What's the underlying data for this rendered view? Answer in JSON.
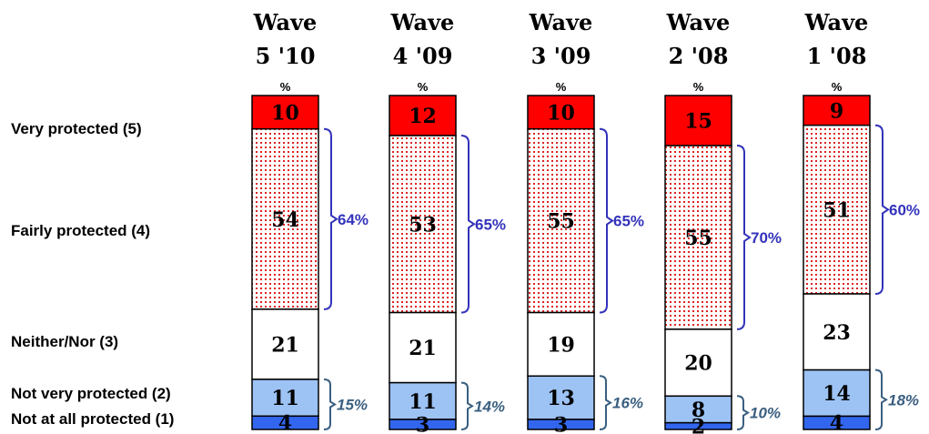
{
  "chart_data": {
    "type": "bar",
    "stacked": true,
    "orientation": "vertical",
    "unit_label": "%",
    "categories": [
      "Wave\n5 '10",
      "Wave\n4 '09",
      "Wave\n3 '09",
      "Wave\n2 '08",
      "Wave\n1 '08"
    ],
    "series": [
      {
        "name": "Very protected (5)",
        "values": [
          10,
          12,
          10,
          15,
          9
        ]
      },
      {
        "name": "Fairly protected (4)",
        "values": [
          54,
          53,
          55,
          55,
          51
        ]
      },
      {
        "name": "Neither/Nor (3)",
        "values": [
          21,
          21,
          19,
          20,
          23
        ]
      },
      {
        "name": "Not very protected (2)",
        "values": [
          11,
          11,
          13,
          8,
          14
        ]
      },
      {
        "name": "Not at all protected (1)",
        "values": [
          4,
          3,
          3,
          2,
          4
        ]
      }
    ],
    "net_protected": [
      "64%",
      "65%",
      "65%",
      "70%",
      "60%"
    ],
    "net_not_protected": [
      "15%",
      "14%",
      "16%",
      "10%",
      "18%"
    ],
    "colors": {
      "very_protected": "#ff0000",
      "fairly_protected_dots": "#dd2222",
      "neither": "#ffffff",
      "not_very_protected": "#9dc3f5",
      "not_at_all_protected": "#3366ee",
      "bracket_positive": "#3333bb",
      "bracket_negative": "#3a5f80"
    }
  }
}
